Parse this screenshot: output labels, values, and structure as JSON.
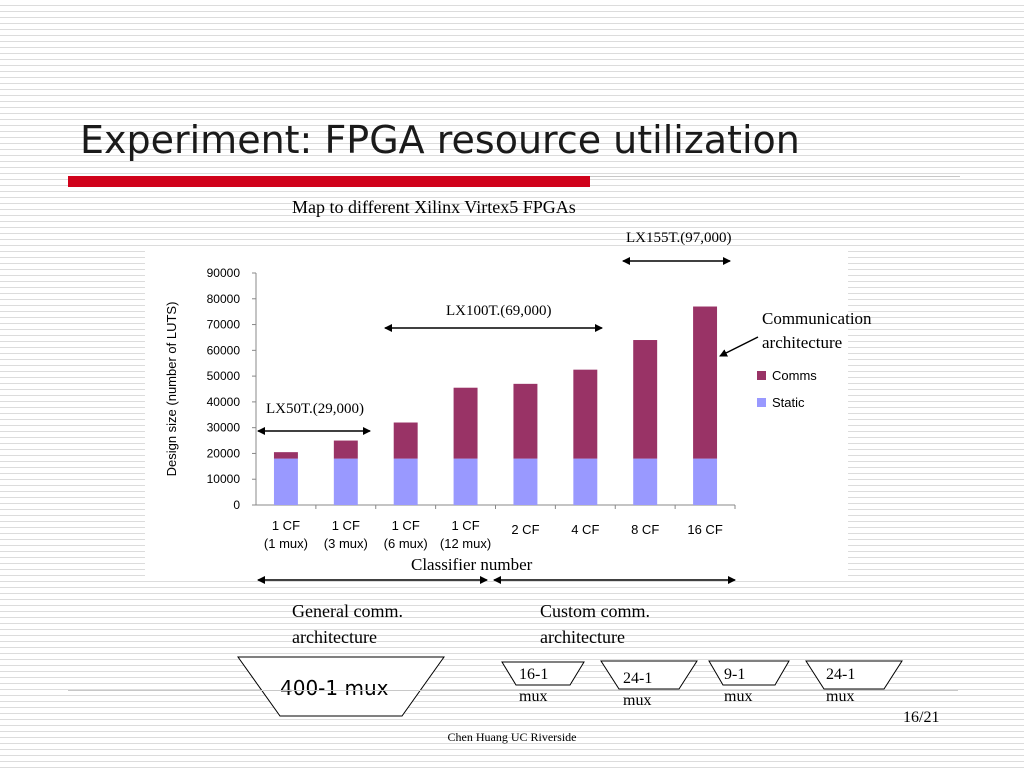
{
  "slide": {
    "title": "Experiment: FPGA resource utilization",
    "page_number": "16/21",
    "footer": "Chen Huang  UC Riverside"
  },
  "chart_data": {
    "type": "bar",
    "stacked": true,
    "title": "Map to different Xilinx Virtex5 FPGAs",
    "xlabel": "Classifier number",
    "ylabel": "Design size (number of LUTS)",
    "ylim": [
      0,
      90000
    ],
    "yticks": [
      0,
      10000,
      20000,
      30000,
      40000,
      50000,
      60000,
      70000,
      80000,
      90000
    ],
    "categories": [
      [
        "1 CF",
        "(1 mux)"
      ],
      [
        "1 CF",
        "(3 mux)"
      ],
      [
        "1 CF",
        "(6 mux)"
      ],
      [
        "1 CF",
        "(12 mux)"
      ],
      [
        "2 CF"
      ],
      [
        "4 CF"
      ],
      [
        "8 CF"
      ],
      [
        "16 CF"
      ]
    ],
    "series": [
      {
        "name": "Static",
        "color": "#9999ff",
        "values": [
          18000,
          18000,
          18000,
          18000,
          18000,
          18000,
          18000,
          18000
        ]
      },
      {
        "name": "Comms",
        "color": "#993366",
        "values": [
          2500,
          7000,
          14000,
          27500,
          29000,
          34500,
          46000,
          59000
        ]
      }
    ],
    "legend": {
      "placement": "right",
      "order": [
        "Comms",
        "Static"
      ]
    },
    "grid": false,
    "annotations": {
      "lx50t": "LX50T.(29,000)",
      "lx100t": "LX100T.(69,000)",
      "lx155t": "LX155T.(97,000)",
      "comm_arch": [
        "Communication",
        "architecture"
      ]
    }
  },
  "architecture": {
    "general": [
      "General comm.",
      "architecture"
    ],
    "custom": [
      "Custom comm.",
      "architecture"
    ],
    "muxes": {
      "general_mux": "400-1 mux",
      "mux_a": [
        "16-1",
        "mux"
      ],
      "mux_b": [
        "24-1",
        "mux"
      ],
      "mux_c": [
        "9-1",
        "mux"
      ],
      "mux_d": [
        "24-1",
        "mux"
      ]
    }
  }
}
